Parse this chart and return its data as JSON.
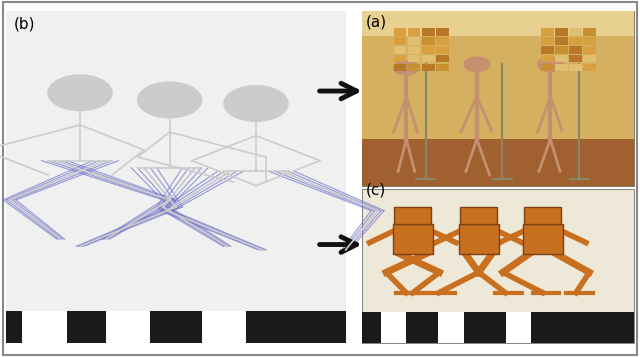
{
  "fig_width": 6.4,
  "fig_height": 3.57,
  "dpi": 100,
  "background_color": "#ffffff",
  "border_color": "#888888",
  "label_a": "(a)",
  "label_b": "(b)",
  "label_c": "(c)",
  "label_fontsize": 11,
  "label_color": "#000000",
  "skeleton_bg": "#ffffff",
  "photo_bg": "#c8a060",
  "robot_bg": "#e0c080",
  "floor_color": "#1a1a1a",
  "muscle_color": "#7070cc",
  "bone_color": "#cccccc",
  "robot_body_color": "#c87020",
  "arrow_color": "#111111",
  "arrow_linewidth": 3.5
}
